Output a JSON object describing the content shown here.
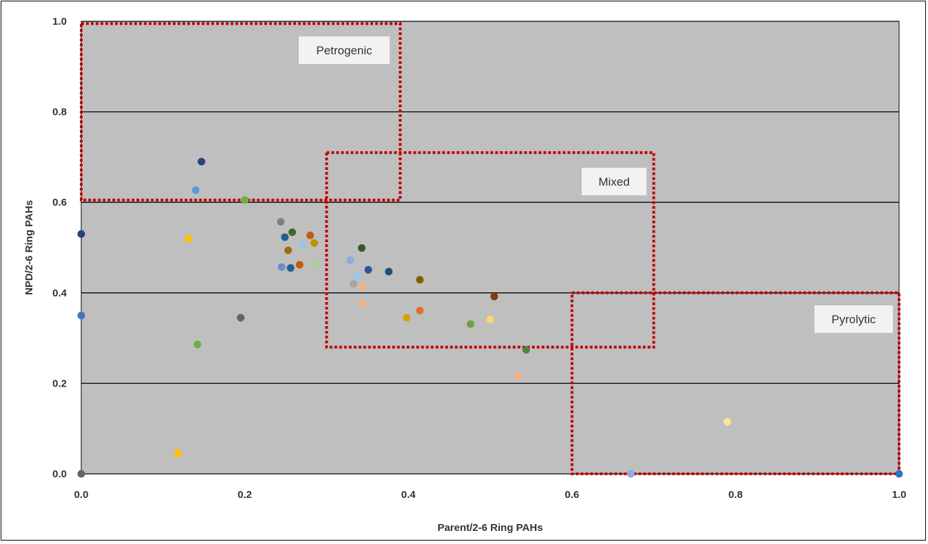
{
  "chart_data": {
    "type": "scatter",
    "title": "",
    "xlabel": "Parent/2-6 Ring PAHs",
    "ylabel": "NPD/2-6 Ring PAHs",
    "xlim": [
      0,
      1
    ],
    "ylim": [
      0,
      1
    ],
    "x_ticks": [
      "0.0",
      "0.2",
      "0.4",
      "0.6",
      "0.8",
      "1.0"
    ],
    "y_ticks": [
      "0.0",
      "0.2",
      "0.4",
      "0.6",
      "0.8",
      "1.0"
    ],
    "grid": "horizontal",
    "plot_background": "#bfbfbf",
    "regions": [
      {
        "label": "Petrogenic",
        "x0": 0.0,
        "x1": 0.39,
        "y0": 0.605,
        "y1": 0.995,
        "color": "#c00000"
      },
      {
        "label": "Mixed",
        "x0": 0.3,
        "x1": 0.7,
        "y0": 0.28,
        "y1": 0.71,
        "color": "#c00000"
      },
      {
        "label": "Pyrolytic",
        "x0": 0.6,
        "x1": 1.0,
        "y0": 0.0,
        "y1": 0.4,
        "color": "#c00000"
      }
    ],
    "points": [
      {
        "x": 0.0,
        "y": 0.53,
        "color": "#264478"
      },
      {
        "x": 0.0,
        "y": 0.35,
        "color": "#4472c4"
      },
      {
        "x": 0.0,
        "y": 0.0,
        "color": "#636363"
      },
      {
        "x": 0.118,
        "y": 0.046,
        "color": "#ffc000"
      },
      {
        "x": 0.131,
        "y": 0.52,
        "color": "#ffc000"
      },
      {
        "x": 0.14,
        "y": 0.627,
        "color": "#5b9bd5"
      },
      {
        "x": 0.142,
        "y": 0.286,
        "color": "#70ad47"
      },
      {
        "x": 0.147,
        "y": 0.69,
        "color": "#264478"
      },
      {
        "x": 0.195,
        "y": 0.345,
        "color": "#636363"
      },
      {
        "x": 0.2,
        "y": 0.605,
        "color": "#70ad47"
      },
      {
        "x": 0.244,
        "y": 0.557,
        "color": "#7f7f7f"
      },
      {
        "x": 0.245,
        "y": 0.457,
        "color": "#698ed0"
      },
      {
        "x": 0.249,
        "y": 0.523,
        "color": "#255e91"
      },
      {
        "x": 0.253,
        "y": 0.494,
        "color": "#997300"
      },
      {
        "x": 0.256,
        "y": 0.455,
        "color": "#255e91"
      },
      {
        "x": 0.258,
        "y": 0.534,
        "color": "#43682b"
      },
      {
        "x": 0.267,
        "y": 0.462,
        "color": "#c55a11"
      },
      {
        "x": 0.27,
        "y": 0.508,
        "color": "#9dc3e6"
      },
      {
        "x": 0.28,
        "y": 0.527,
        "color": "#c55a11"
      },
      {
        "x": 0.285,
        "y": 0.51,
        "color": "#bf9000"
      },
      {
        "x": 0.286,
        "y": 0.462,
        "color": "#a9d18e"
      },
      {
        "x": 0.329,
        "y": 0.472,
        "color": "#8faadc"
      },
      {
        "x": 0.333,
        "y": 0.42,
        "color": "#a5a5a5"
      },
      {
        "x": 0.337,
        "y": 0.437,
        "color": "#9dc3e6"
      },
      {
        "x": 0.343,
        "y": 0.499,
        "color": "#375623"
      },
      {
        "x": 0.344,
        "y": 0.413,
        "color": "#f4b183"
      },
      {
        "x": 0.344,
        "y": 0.376,
        "color": "#f4b183"
      },
      {
        "x": 0.351,
        "y": 0.451,
        "color": "#2f5597"
      },
      {
        "x": 0.376,
        "y": 0.447,
        "color": "#1f4e79"
      },
      {
        "x": 0.398,
        "y": 0.345,
        "color": "#d6a200"
      },
      {
        "x": 0.414,
        "y": 0.429,
        "color": "#7f6000"
      },
      {
        "x": 0.414,
        "y": 0.361,
        "color": "#e06f28"
      },
      {
        "x": 0.476,
        "y": 0.331,
        "color": "#70a043"
      },
      {
        "x": 0.5,
        "y": 0.341,
        "color": "#ffd966"
      },
      {
        "x": 0.505,
        "y": 0.392,
        "color": "#843c0c"
      },
      {
        "x": 0.534,
        "y": 0.216,
        "color": "#f4b183"
      },
      {
        "x": 0.544,
        "y": 0.274,
        "color": "#548235"
      },
      {
        "x": 0.672,
        "y": 0.0,
        "color": "#8faadc"
      },
      {
        "x": 0.79,
        "y": 0.115,
        "color": "#ffe699"
      },
      {
        "x": 1.0,
        "y": 0.0,
        "color": "#2e75b6"
      }
    ]
  }
}
